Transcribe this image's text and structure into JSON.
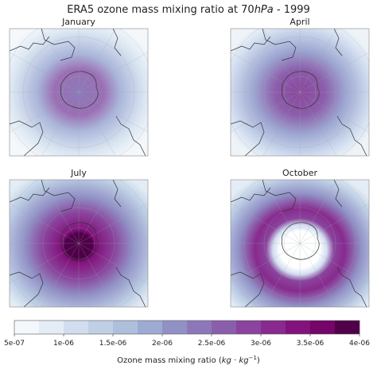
{
  "title": {
    "before": "ERA5 ozone mass mixing ratio at 70",
    "italic": "hPa",
    "after": "  - 1999"
  },
  "panels": [
    {
      "title": "January"
    },
    {
      "title": "April"
    },
    {
      "title": "July"
    },
    {
      "title": "October"
    }
  ],
  "colorbar": {
    "range": [
      5e-07,
      4e-06
    ],
    "colors": [
      "#f4f8fb",
      "#e4edf5",
      "#d2def0",
      "#bfd0e6",
      "#aebfdd",
      "#9dabd3",
      "#9191c6",
      "#8c78b9",
      "#8b5eab",
      "#8a449d",
      "#882a8e",
      "#83127c",
      "#740569",
      "#4f0048"
    ],
    "ticks": [
      {
        "value": 5e-07,
        "label": "5e-07"
      },
      {
        "value": 1e-06,
        "label": "1e-06"
      },
      {
        "value": 1.5e-06,
        "label": "1.5e-06"
      },
      {
        "value": 2e-06,
        "label": "2e-06"
      },
      {
        "value": 2.5e-06,
        "label": "2.5e-06"
      },
      {
        "value": 3e-06,
        "label": "3e-06"
      },
      {
        "value": 3.5e-06,
        "label": "3.5e-06"
      },
      {
        "value": 4e-06,
        "label": "4e-06"
      }
    ],
    "label": {
      "before": "Ozone mass mixing ratio (",
      "kg1": "kg",
      "dot": " · ",
      "kg2": "kg",
      "exp": "−1",
      "after": ")"
    }
  }
}
